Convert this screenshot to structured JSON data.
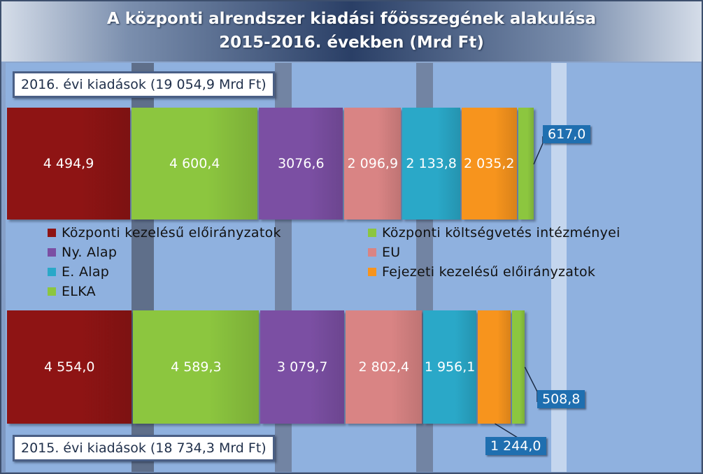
{
  "title": {
    "line1": "A központi alrendszer kiadási főösszegének alakulása",
    "line2": "2015-2016. években (Mrd Ft)"
  },
  "colors": {
    "kozponti_kezelesu": "#8e1414",
    "kozponti_koltsegvetes": "#8cc63f",
    "ny_alap": "#7b4fa3",
    "eu": "#d98484",
    "e_alap": "#2aa8c8",
    "fejezeti": "#f7941d",
    "elka": "#8cc63f"
  },
  "chart_data": {
    "type": "bar",
    "orientation": "horizontal",
    "stacked": true,
    "categories": [
      "2016",
      "2015"
    ],
    "series": [
      {
        "name": "Központi kezelésű előirányzatok",
        "values": [
          4494.9,
          4554.0
        ],
        "labels": [
          "4 494,9",
          "4 554,0"
        ]
      },
      {
        "name": "Központi költségvetés intézményei",
        "values": [
          4600.4,
          4589.3
        ],
        "labels": [
          "4 600,4",
          "4 589,3"
        ]
      },
      {
        "name": "Ny. Alap",
        "values": [
          3076.6,
          3079.7
        ],
        "labels": [
          "3076,6",
          "3 079,7"
        ]
      },
      {
        "name": "EU",
        "values": [
          2096.9,
          2802.4
        ],
        "labels": [
          "2 096,9",
          "2 802,4"
        ]
      },
      {
        "name": "E. Alap",
        "values": [
          2133.8,
          1956.1
        ],
        "labels": [
          "2 133,8",
          "1 956,1"
        ]
      },
      {
        "name": "Fejezeti kezelésű előirányzatok",
        "values": [
          2035.2,
          1244.0
        ],
        "labels": [
          "2 035,2",
          "1 244,0"
        ]
      },
      {
        "name": "ELKA",
        "values": [
          617.0,
          508.8
        ],
        "labels": [
          "617,0",
          "508,8"
        ]
      }
    ],
    "totals": {
      "2016": "2016. évi kiadások (19 054,9 Mrd Ft)",
      "2015": "2015. évi kiadások (18 734,3 Mrd Ft)"
    },
    "legend_position": "middle",
    "grid": false
  }
}
